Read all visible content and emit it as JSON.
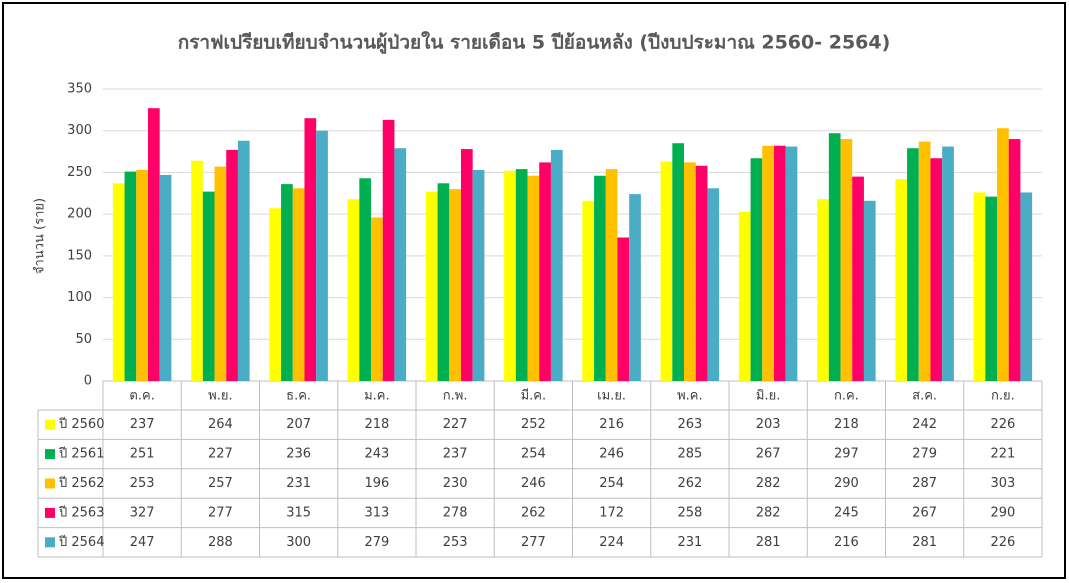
{
  "chart_data": {
    "type": "bar",
    "title": "กราฟเปรียบเทียบจำนวนผู้ป่วยใน รายเดือน 5 ปีย้อนหลัง (ปีงบประมาณ 2560- 2564)",
    "y_label": "จำนวน (ราย)",
    "categories": [
      "ต.ค.",
      "พ.ย.",
      "ธ.ค.",
      "ม.ค.",
      "ก.พ.",
      "มี.ค.",
      "เม.ย.",
      "พ.ค.",
      "มิ.ย.",
      "ก.ค.",
      "ส.ค.",
      "ก.ย."
    ],
    "series": [
      {
        "name": "ปี 2560",
        "color": "#ffff00",
        "values": [
          237,
          264,
          207,
          218,
          227,
          252,
          216,
          263,
          203,
          218,
          242,
          226
        ]
      },
      {
        "name": "ปี 2561",
        "color": "#00b050",
        "values": [
          251,
          227,
          236,
          243,
          237,
          254,
          246,
          285,
          267,
          297,
          279,
          221
        ]
      },
      {
        "name": "ปี 2562",
        "color": "#ffc000",
        "values": [
          253,
          257,
          231,
          196,
          230,
          246,
          254,
          262,
          282,
          290,
          287,
          303
        ]
      },
      {
        "name": "ปี 2563",
        "color": "#ff0066",
        "values": [
          327,
          277,
          315,
          313,
          278,
          262,
          172,
          258,
          282,
          245,
          267,
          290
        ]
      },
      {
        "name": "ปี 2564",
        "color": "#4bacc6",
        "values": [
          247,
          288,
          300,
          279,
          253,
          277,
          224,
          231,
          281,
          216,
          281,
          226
        ]
      }
    ],
    "ylim": [
      0,
      350
    ],
    "yticks": [
      0,
      50,
      100,
      150,
      200,
      250,
      300,
      350
    ],
    "grid": true
  }
}
